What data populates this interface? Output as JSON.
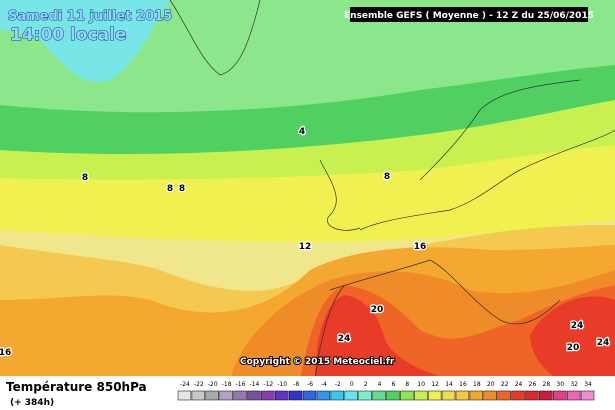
{
  "header": {
    "date": "Samedi 11 juillet 2015",
    "time": "14:00 locale",
    "run": "Ensemble GEFS  ( Moyenne )  - 12 Z du 25/06/2015"
  },
  "copyright": "Copyright © 2015 Meteociel.fr",
  "legend": {
    "title": "Température 850hPa",
    "lead": "(+ 384h)",
    "labels": [
      -24,
      -22,
      -20,
      -18,
      -16,
      -14,
      -12,
      -10,
      -8,
      -6,
      -4,
      -2,
      0,
      2,
      4,
      6,
      8,
      10,
      12,
      14,
      16,
      18,
      20,
      22,
      24,
      26,
      28,
      30,
      32,
      34
    ],
    "colors": [
      "#e6e6e6",
      "#c8c8c8",
      "#aaaaaa",
      "#b4a0c8",
      "#9678b4",
      "#7850a0",
      "#8c3cb4",
      "#6432c8",
      "#3232d2",
      "#3264e6",
      "#3296f0",
      "#32c8f0",
      "#64e6f0",
      "#78f0c8",
      "#64dc8c",
      "#50d060",
      "#8ce650",
      "#c8f050",
      "#f0f050",
      "#f0dc50",
      "#f5c840",
      "#f5a830",
      "#f08c28",
      "#f06428",
      "#e83c28",
      "#dc2828",
      "#c81e3c",
      "#e63c8c",
      "#f064b4",
      "#f08cd2"
    ]
  },
  "contours": [
    4,
    8,
    8,
    8,
    8,
    12,
    16,
    20,
    24,
    24,
    24,
    20,
    16
  ]
}
